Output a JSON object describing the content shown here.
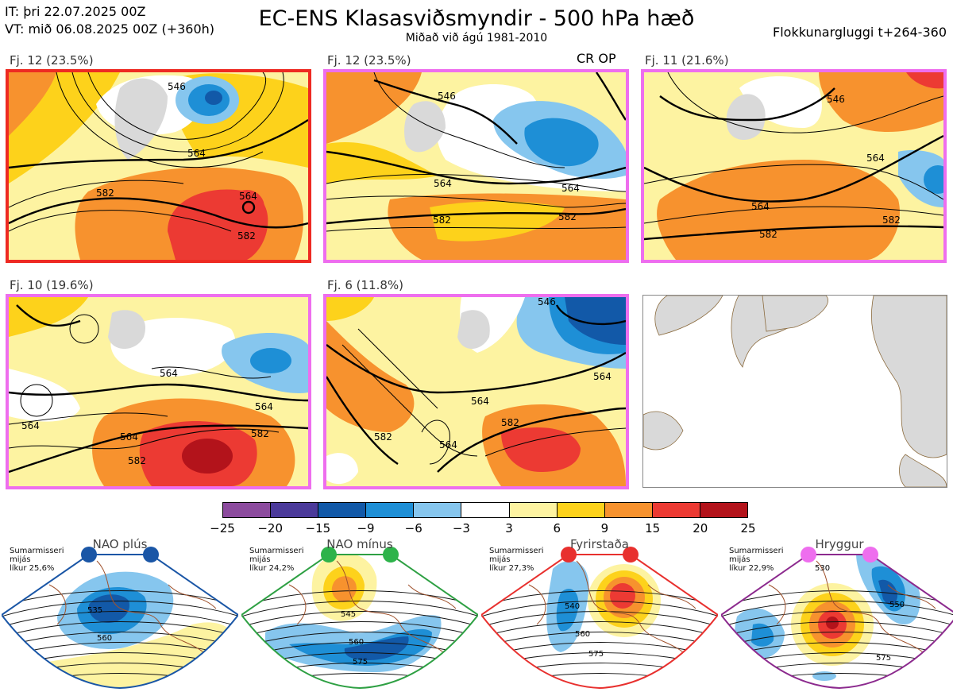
{
  "header": {
    "it": "IT: þri 22.07.2025 00Z",
    "vt": "VT: mið 06.08.2025 00Z  (+360h)",
    "title": "EC-ENS Klasasviðsmyndir - 500 hPa hæð",
    "subtitle": "Miðað við ágú 1981-2010",
    "window": "Flokkunargluggi t+264-360"
  },
  "clusters": [
    {
      "label": "Fj. 12 (23.5%)",
      "border": "#ee2a22",
      "contours": [
        "546",
        "564",
        "582",
        "564",
        "582"
      ]
    },
    {
      "label": "Fj. 12 (23.5%)",
      "border": "#ee6eee",
      "crop": "CR OP",
      "contours": [
        "546",
        "564",
        "564",
        "582",
        "582"
      ]
    },
    {
      "label": "Fj. 11 (21.6%)",
      "border": "#ee6eee",
      "contours": [
        "546",
        "564",
        "564",
        "582",
        "582"
      ]
    },
    {
      "label": "Fj. 10 (19.6%)",
      "border": "#ee6eee",
      "contours": [
        "564",
        "564",
        "564",
        "582",
        "582",
        "564"
      ]
    },
    {
      "label": "Fj. 6 (11.8%)",
      "border": "#ee6eee",
      "contours": [
        "546",
        "564",
        "564",
        "582",
        "582",
        "564"
      ]
    }
  ],
  "colorbar": {
    "colors": [
      "#8c4b9e",
      "#4b3a9a",
      "#1259a8",
      "#1e8fd6",
      "#86c6ee",
      "#ffffff",
      "#fdf3a1",
      "#fdd21b",
      "#f7922e",
      "#ec3a33",
      "#b3131b"
    ],
    "ticks": [
      "−25",
      "−20",
      "−15",
      "−9",
      "−6",
      "−3",
      "3",
      "6",
      "9",
      "15",
      "20",
      "25"
    ]
  },
  "regimes": [
    {
      "name": "NAO plús",
      "color": "#1a56a6",
      "dot": "#1a56a6",
      "desc": [
        "Sumarmisseri",
        "mijás",
        "líkur 25,6%"
      ],
      "contours": [
        "535",
        "560"
      ]
    },
    {
      "name": "NAO mínus",
      "color": "#2ea043",
      "dot": "#2db34a",
      "desc": [
        "Sumarmisseri",
        "mijás",
        "líkur 24,2%"
      ],
      "contours": [
        "545",
        "560",
        "575"
      ]
    },
    {
      "name": "Fyrirstaða",
      "color": "#e8302e",
      "dot": "#e8302e",
      "desc": [
        "Sumarmisseri",
        "mijás",
        "líkur 27,3%"
      ],
      "contours": [
        "540",
        "560",
        "575"
      ]
    },
    {
      "name": "Hryggur",
      "color": "#8c2a8e",
      "dot": "#ee6eee",
      "desc": [
        "Sumarmisseri",
        "mijás",
        "líkur 22,9%"
      ],
      "contours": [
        "530",
        "550",
        "575"
      ]
    }
  ]
}
